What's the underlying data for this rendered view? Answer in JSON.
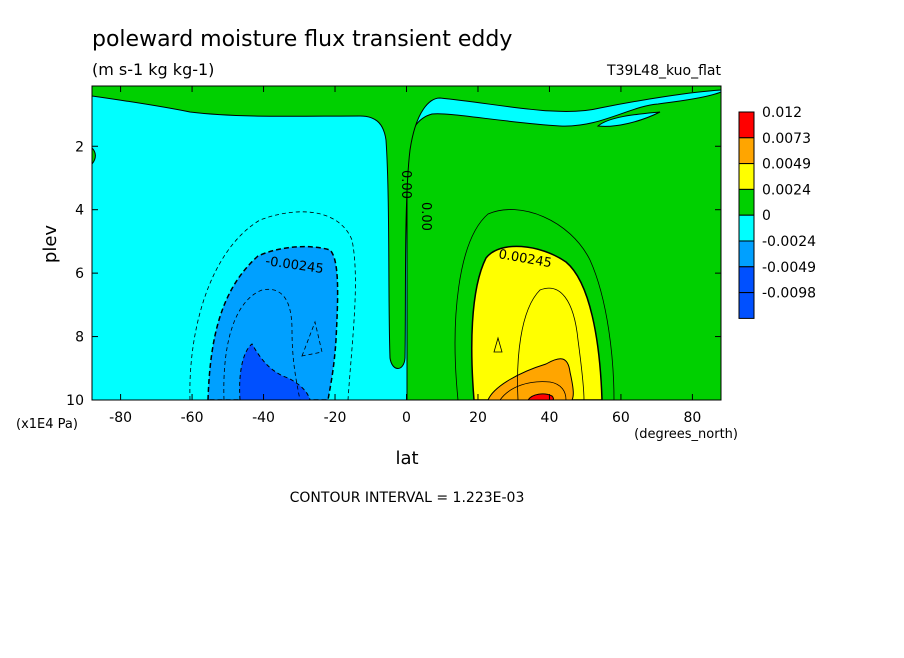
{
  "chart_data": {
    "type": "heatmap",
    "title": "poleward moisture flux transient eddy",
    "subtitle": "(m s-1 kg kg-1)",
    "run_label": "T39L48_kuo_flat",
    "xlabel": "lat",
    "x_units": "(degrees_north)",
    "ylabel": "plev",
    "y_units": "(x1E4 Pa)",
    "xlim": [
      -88,
      88
    ],
    "ylim": [
      10,
      0.1
    ],
    "x_ticks": [
      -80,
      -60,
      -40,
      -20,
      0,
      20,
      40,
      60,
      80
    ],
    "y_ticks": [
      2,
      4,
      6,
      8,
      10
    ],
    "footer": "CONTOUR INTERVAL = 1.223E-03",
    "contour_labels": [
      "-0.00245",
      "0.00",
      "0.00",
      "0.00245"
    ],
    "legend": {
      "placement": "right",
      "labels": [
        "0.012",
        "0.0073",
        "0.0049",
        "0.0024",
        "0",
        "-0.0024",
        "-0.0049",
        "-0.0098"
      ],
      "colors": [
        "#ff0000",
        "#ffa500",
        "#ffff00",
        "#00d000",
        "#00ffff",
        "#00a0ff",
        "#0050ff",
        "#ffffff"
      ]
    },
    "regions": [
      {
        "level": "positive-small",
        "color": "#00d000",
        "desc": "northern hemisphere and equatorial tongue"
      },
      {
        "level": "negative-small",
        "color": "#00ffff",
        "desc": "southern hemisphere and upper levels"
      },
      {
        "level": "-0.0024",
        "color": "#00a0ff",
        "center": [
          -38,
          7.5
        ]
      },
      {
        "level": "-0.0049",
        "color": "#0050ff",
        "center": [
          -42,
          9.5
        ]
      },
      {
        "level": "0.0024",
        "color": "#ffff00",
        "center": [
          32,
          7.8
        ]
      },
      {
        "level": "0.0049",
        "color": "#ffa500",
        "center": [
          40,
          9.5
        ]
      },
      {
        "level": "0.0073",
        "color": "#ff0000",
        "center": [
          37,
          9.9
        ]
      }
    ]
  }
}
